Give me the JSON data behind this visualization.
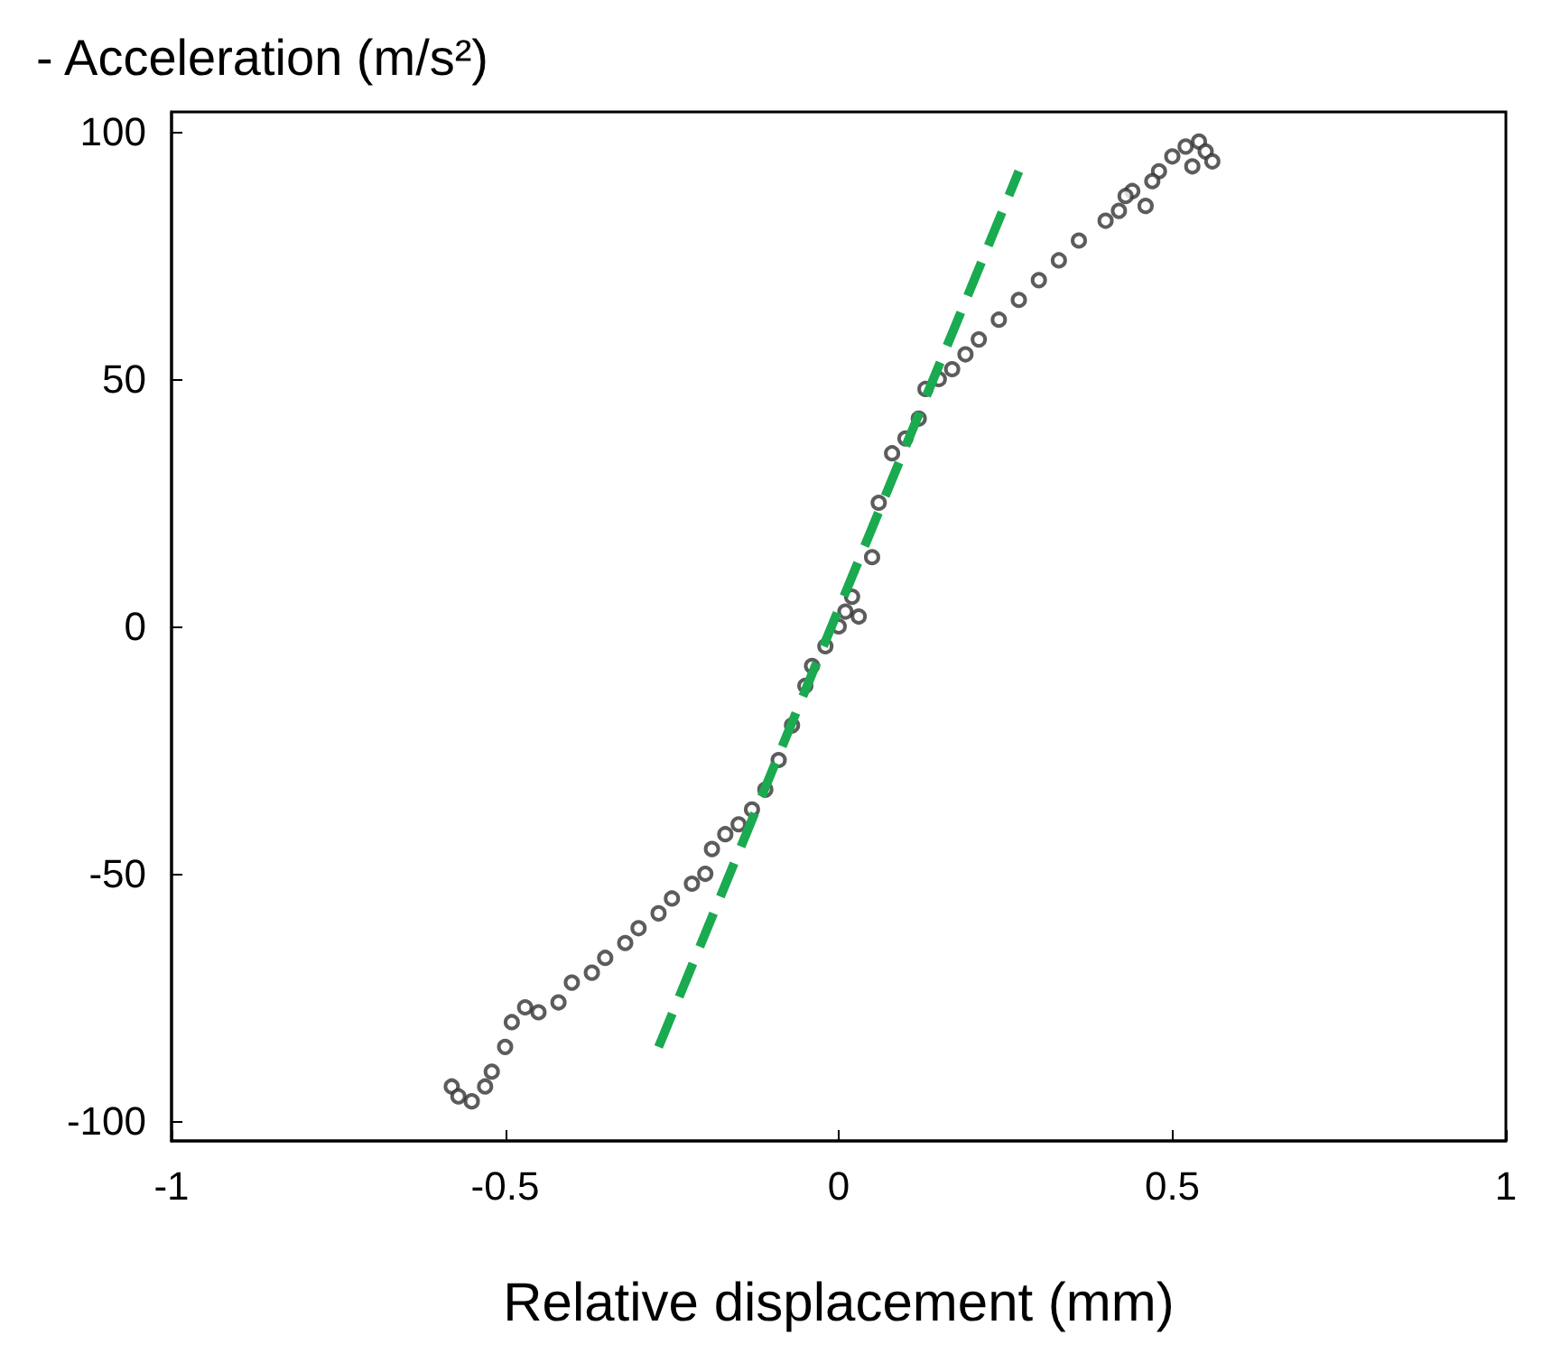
{
  "chart_data": {
    "type": "scatter",
    "ylabel": "- Acceleration (m/s²)",
    "xlabel": "Relative displacement (mm)",
    "xlim": [
      -1,
      1
    ],
    "xticks": [
      -1,
      -0.5,
      0,
      0.5,
      1
    ],
    "ylim": [
      -104,
      104
    ],
    "yticks": [
      -100,
      -50,
      0,
      50,
      100
    ],
    "grid": false,
    "series": [
      {
        "color": "#333333",
        "marker": "circle",
        "x": [
          -0.58,
          -0.57,
          -0.55,
          -0.53,
          -0.52,
          -0.5,
          -0.49,
          -0.47,
          -0.45,
          -0.42,
          -0.4,
          -0.37,
          -0.35,
          -0.32,
          -0.3,
          -0.27,
          -0.25,
          -0.22,
          -0.2,
          -0.19,
          -0.17,
          -0.15,
          -0.13,
          -0.11,
          -0.09,
          -0.07,
          -0.05,
          -0.04,
          -0.02,
          0,
          0.01,
          0.02,
          0.03,
          0.05,
          0.06,
          0.08,
          0.1,
          0.12,
          0.13,
          0.15,
          0.17,
          0.19,
          0.21,
          0.24,
          0.27,
          0.3,
          0.33,
          0.36,
          0.4,
          0.42,
          0.44,
          0.46,
          0.48,
          0.5,
          0.52,
          0.54,
          0.55,
          0.56,
          0.53,
          0.47,
          0.43
        ],
        "values": [
          -93,
          -95,
          -96,
          -93,
          -90,
          -85,
          -80,
          -77,
          -78,
          -76,
          -72,
          -70,
          -67,
          -64,
          -61,
          -58,
          -55,
          -52,
          -50,
          -45,
          -42,
          -40,
          -37,
          -33,
          -27,
          -20,
          -12,
          -8,
          -4,
          0,
          3,
          6,
          2,
          14,
          25,
          35,
          38,
          42,
          48,
          50,
          52,
          55,
          58,
          62,
          66,
          70,
          74,
          78,
          82,
          84,
          88,
          85,
          92,
          95,
          97,
          98,
          96,
          94,
          93,
          90,
          87
        ]
      },
      {
        "type": "line",
        "marker": "none",
        "line_style": "dashed",
        "color": "#1aaa50",
        "x": [
          -0.27,
          0.27
        ],
        "values": [
          -85,
          92
        ]
      }
    ]
  }
}
